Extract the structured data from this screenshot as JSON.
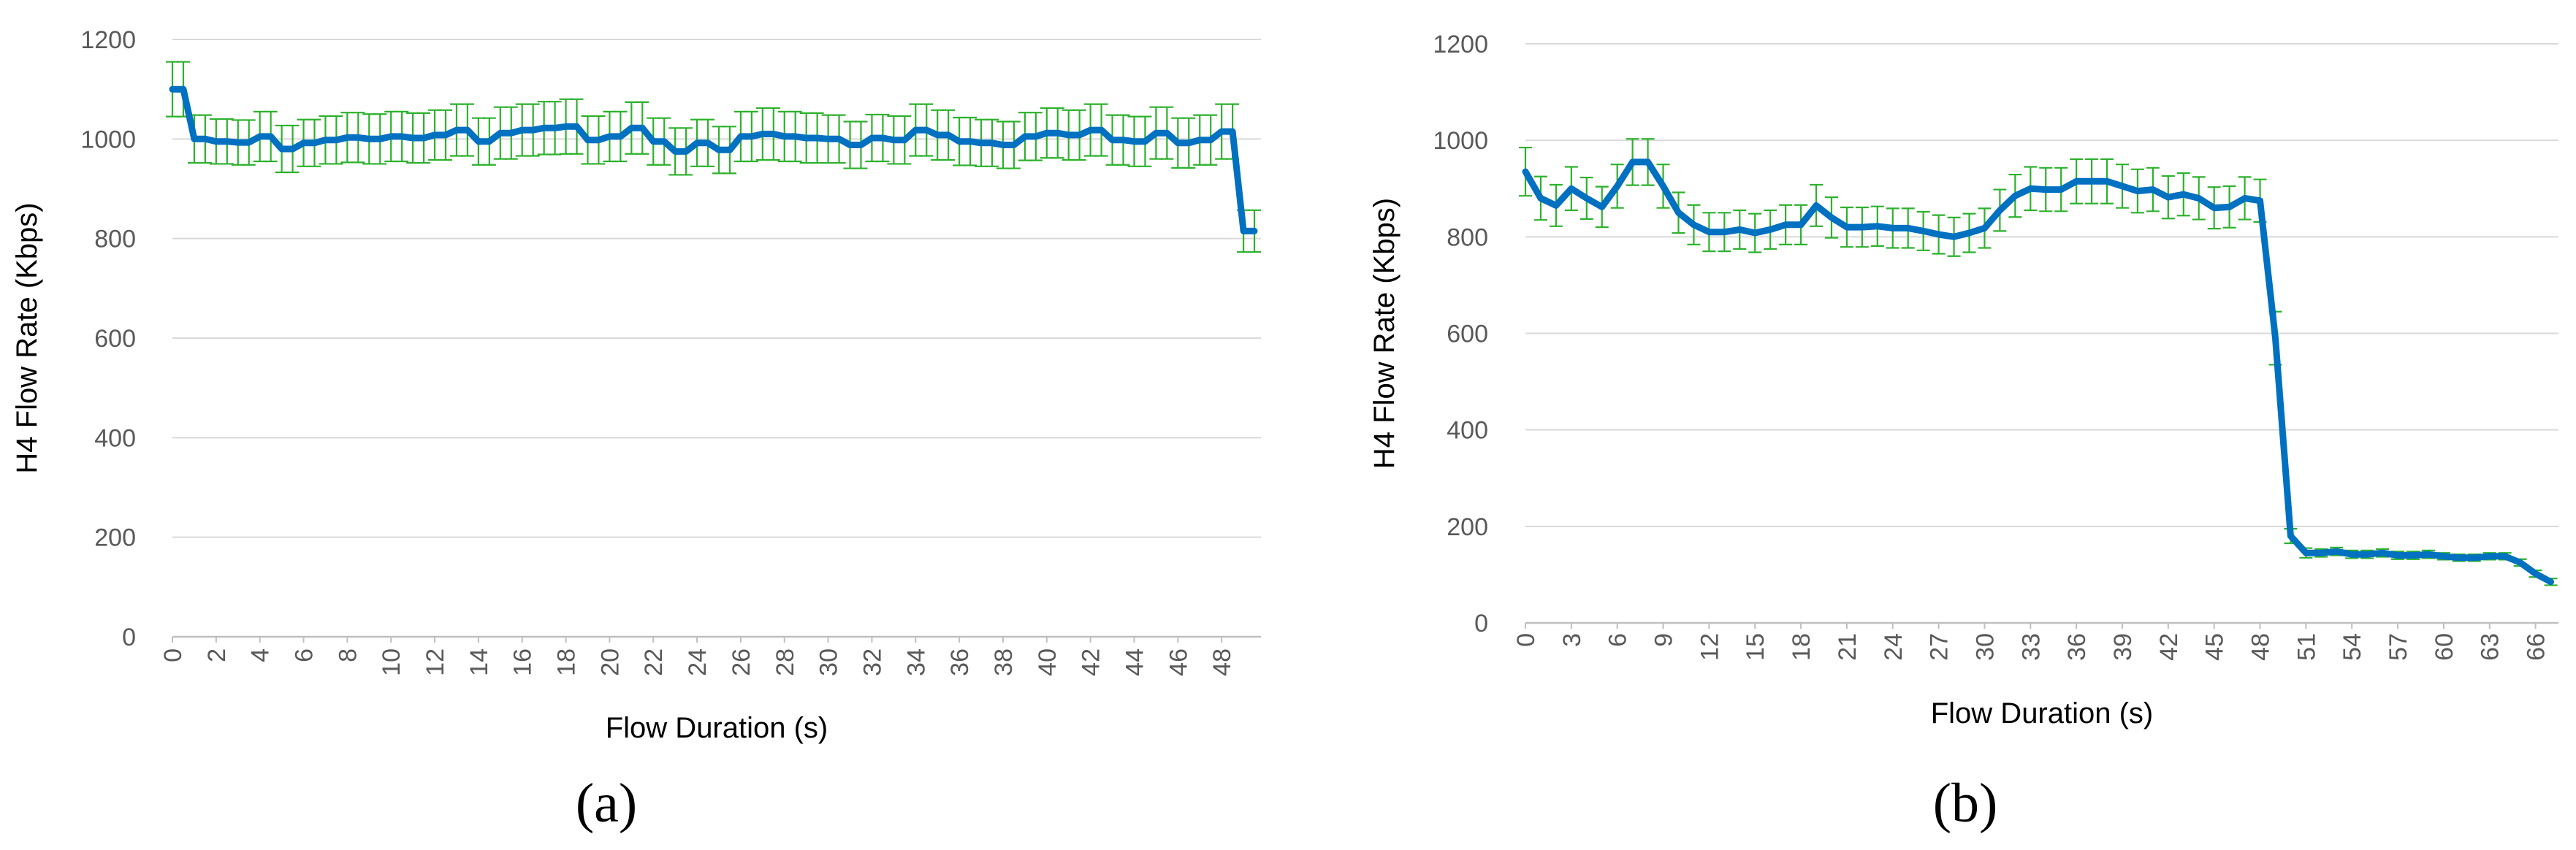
{
  "colors": {
    "line": "#0070C0",
    "error_bar": "#2DB12D",
    "grid": "#D9D9D9",
    "tick_text": "#595959"
  },
  "chart_data": [
    {
      "type": "line",
      "panel_label": "(a)",
      "xlabel": "Flow Duration (s)",
      "ylabel": "H4 Flow Rate (Kbps)",
      "ylim": [
        0,
        1200
      ],
      "yticks": [
        "0",
        "200",
        "400",
        "600",
        "800",
        "1000",
        "1200"
      ],
      "xticks": [
        "0",
        "2",
        "4",
        "6",
        "8",
        "10",
        "12",
        "14",
        "16",
        "18",
        "20",
        "22",
        "24",
        "26",
        "28",
        "30",
        "32",
        "34",
        "36",
        "38",
        "40",
        "42",
        "44",
        "46",
        "48"
      ],
      "grid": true,
      "series": [
        {
          "name": "H4 Flow Rate",
          "x": [
            0,
            0.5,
            1,
            1.5,
            2,
            2.5,
            3,
            3.5,
            4,
            4.5,
            5,
            5.5,
            6,
            6.5,
            7,
            7.5,
            8,
            8.5,
            9,
            9.5,
            10,
            10.5,
            11,
            11.5,
            12,
            12.5,
            13,
            13.5,
            14,
            14.5,
            15,
            15.5,
            16,
            16.5,
            17,
            17.5,
            18,
            18.5,
            19,
            19.5,
            20,
            20.5,
            21,
            21.5,
            22,
            22.5,
            23,
            23.5,
            24,
            24.5,
            25,
            25.5,
            26,
            26.5,
            27,
            27.5,
            28,
            28.5,
            29,
            29.5,
            30,
            30.5,
            31,
            31.5,
            32,
            32.5,
            33,
            33.5,
            34,
            34.5,
            35,
            35.5,
            36,
            36.5,
            37,
            37.5,
            38,
            38.5,
            39,
            39.5,
            40,
            40.5,
            41,
            41.5,
            42,
            42.5,
            43,
            43.5,
            44,
            44.5,
            45,
            45.5,
            46,
            46.5,
            47,
            47.5,
            48,
            48.5,
            49,
            49.5
          ],
          "values": [
            1100,
            1100,
            1000,
            1000,
            995,
            995,
            993,
            993,
            1005,
            1005,
            980,
            980,
            992,
            992,
            998,
            998,
            1003,
            1003,
            1000,
            1000,
            1005,
            1005,
            1002,
            1002,
            1008,
            1008,
            1018,
            1018,
            995,
            995,
            1012,
            1012,
            1018,
            1018,
            1022,
            1022,
            1025,
            1025,
            998,
            998,
            1005,
            1005,
            1022,
            1022,
            995,
            995,
            975,
            975,
            992,
            992,
            978,
            978,
            1005,
            1005,
            1010,
            1010,
            1005,
            1005,
            1002,
            1002,
            1000,
            1000,
            988,
            988,
            1002,
            1002,
            998,
            998,
            1018,
            1018,
            1008,
            1008,
            995,
            995,
            992,
            992,
            988,
            988,
            1005,
            1005,
            1012,
            1012,
            1008,
            1008,
            1018,
            1018,
            998,
            998,
            995,
            995,
            1012,
            1012,
            992,
            992,
            998,
            998,
            1015,
            1015,
            815,
            815
          ],
          "error": [
            55,
            55,
            48,
            48,
            45,
            45,
            45,
            45,
            50,
            50,
            47,
            47,
            47,
            47,
            48,
            48,
            50,
            50,
            50,
            50,
            50,
            50,
            50,
            50,
            50,
            50,
            52,
            52,
            47,
            47,
            52,
            52,
            52,
            52,
            53,
            53,
            55,
            55,
            48,
            48,
            50,
            50,
            52,
            52,
            47,
            47,
            47,
            47,
            47,
            47,
            47,
            47,
            50,
            50,
            52,
            52,
            50,
            50,
            50,
            50,
            48,
            48,
            47,
            47,
            47,
            47,
            48,
            48,
            52,
            52,
            50,
            50,
            48,
            48,
            47,
            47,
            47,
            47,
            48,
            48,
            50,
            50,
            50,
            50,
            52,
            52,
            50,
            50,
            50,
            50,
            52,
            52,
            50,
            50,
            50,
            50,
            55,
            55,
            42,
            42
          ]
        }
      ]
    },
    {
      "type": "line",
      "panel_label": "(b)",
      "xlabel": "Flow Duration (s)",
      "ylabel": "H4 Flow Rate (Kbps)",
      "ylim": [
        0,
        1200
      ],
      "yticks": [
        "0",
        "200",
        "400",
        "600",
        "800",
        "1000",
        "1200"
      ],
      "xticks": [
        "0",
        "3",
        "6",
        "9",
        "12",
        "15",
        "18",
        "21",
        "24",
        "27",
        "30",
        "33",
        "36",
        "39",
        "42",
        "45",
        "48",
        "51",
        "54",
        "57",
        "60",
        "63",
        "66"
      ],
      "grid": true,
      "series": [
        {
          "name": "H4 Flow Rate",
          "x": [
            0,
            1,
            2,
            3,
            4,
            5,
            6,
            7,
            8,
            9,
            10,
            11,
            12,
            13,
            14,
            15,
            16,
            17,
            18,
            19,
            20,
            21,
            22,
            23,
            24,
            25,
            26,
            27,
            28,
            29,
            30,
            31,
            32,
            33,
            34,
            35,
            36,
            37,
            38,
            39,
            40,
            41,
            42,
            43,
            44,
            45,
            46,
            47,
            48,
            49,
            50,
            51,
            52,
            53,
            54,
            55,
            56,
            57,
            58,
            59,
            60,
            61,
            62,
            63,
            64,
            65,
            66,
            67
          ],
          "values": [
            935,
            880,
            865,
            900,
            880,
            862,
            905,
            955,
            955,
            905,
            850,
            825,
            810,
            810,
            815,
            808,
            815,
            825,
            825,
            865,
            840,
            820,
            820,
            822,
            818,
            818,
            812,
            805,
            800,
            808,
            818,
            855,
            885,
            900,
            898,
            898,
            915,
            915,
            915,
            905,
            895,
            898,
            882,
            888,
            880,
            860,
            862,
            880,
            875,
            590,
            180,
            145,
            145,
            148,
            142,
            142,
            145,
            140,
            140,
            142,
            138,
            135,
            135,
            138,
            138,
            125,
            102,
            85
          ],
          "error": [
            50,
            45,
            43,
            45,
            43,
            42,
            45,
            48,
            48,
            45,
            42,
            41,
            40,
            40,
            40,
            40,
            40,
            41,
            41,
            43,
            42,
            41,
            41,
            41,
            41,
            41,
            40,
            40,
            40,
            40,
            41,
            43,
            44,
            45,
            45,
            45,
            46,
            46,
            46,
            45,
            45,
            45,
            44,
            44,
            44,
            43,
            43,
            44,
            44,
            55,
            15,
            10,
            8,
            8,
            8,
            8,
            8,
            8,
            8,
            8,
            7,
            7,
            7,
            7,
            7,
            7,
            7,
            7
          ]
        }
      ]
    }
  ]
}
